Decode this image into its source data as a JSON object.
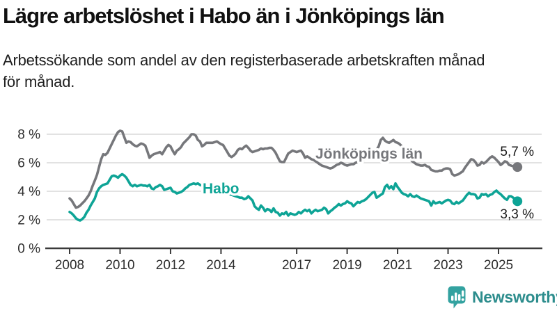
{
  "page": {
    "title": "Lägre arbetslöshet i Habo än i Jönköpings län",
    "subtitle_line1": "Arbetssökande som andel av den registerbaserade arbetskraften månad",
    "subtitle_line2": "för månad."
  },
  "branding": {
    "logo_text": "Newsworthy",
    "logo_text_color": "#2d8d8d",
    "logo_icon_color": "#33a2a0",
    "logo_icon": "bar-chart-bubble-icon"
  },
  "chart_data": {
    "type": "line",
    "unit": "percent",
    "frequency": "monthly",
    "period_start": "2008-01",
    "period_end": "2025-10",
    "grid": "horizontal",
    "ylim": [
      0,
      8.8
    ],
    "y_ticks": [
      0,
      2,
      4,
      6,
      8
    ],
    "y_tick_labels": [
      "0 %",
      "2 %",
      "4 %",
      "6 %",
      "8 %"
    ],
    "x_tick_years": [
      2008,
      2010,
      2012,
      2014,
      2017,
      2019,
      2021,
      2023,
      2025
    ],
    "x_tick_labels": [
      "2008",
      "2010",
      "2012",
      "2014",
      "2017",
      "2019",
      "2021",
      "2023",
      "2025"
    ],
    "colors": {
      "grid": "#d8d8d8",
      "axis": "#3a3a3a",
      "tick_text": "#2d2d2d",
      "value_text": "#1a1a1a"
    },
    "series": [
      {
        "name": "Jönköpings län",
        "color": "#76777b",
        "end_value_label": "5,7 %",
        "values": [
          3.5,
          3.35,
          3.1,
          2.85,
          2.9,
          3.0,
          3.15,
          3.3,
          3.5,
          3.7,
          4.0,
          4.4,
          4.75,
          5.15,
          5.7,
          6.25,
          6.6,
          6.55,
          6.7,
          7.0,
          7.3,
          7.6,
          7.9,
          8.15,
          8.25,
          8.2,
          7.8,
          7.4,
          7.5,
          7.45,
          7.3,
          7.2,
          7.15,
          7.25,
          7.35,
          7.3,
          7.2,
          6.8,
          6.35,
          6.5,
          6.6,
          6.65,
          6.7,
          6.75,
          6.6,
          6.85,
          7.1,
          7.25,
          7.15,
          6.85,
          6.6,
          6.85,
          6.95,
          7.1,
          7.35,
          7.5,
          7.65,
          7.8,
          8.0,
          8.0,
          7.9,
          7.6,
          7.5,
          7.15,
          7.25,
          7.4,
          7.4,
          7.4,
          7.4,
          7.45,
          7.5,
          7.4,
          7.3,
          7.25,
          7.0,
          6.75,
          6.5,
          6.4,
          6.5,
          6.65,
          6.9,
          7.0,
          6.95,
          7.1,
          7.2,
          7.05,
          6.85,
          6.75,
          6.8,
          6.85,
          6.9,
          7.0,
          6.95,
          7.0,
          7.0,
          7.05,
          7.05,
          6.9,
          6.7,
          6.4,
          6.1,
          6.05,
          6.05,
          6.35,
          6.65,
          6.75,
          6.85,
          6.8,
          6.75,
          6.8,
          6.85,
          6.65,
          6.35,
          6.45,
          6.35,
          6.25,
          6.2,
          6.1,
          6.0,
          5.9,
          5.8,
          5.75,
          5.7,
          5.65,
          5.6,
          5.65,
          5.75,
          5.85,
          5.9,
          6.0,
          5.95,
          5.85,
          5.8,
          5.85,
          5.9,
          5.9,
          6.0,
          6.05,
          6.1,
          6.15,
          6.2,
          6.3,
          6.35,
          6.4,
          6.5,
          6.6,
          6.9,
          7.15,
          7.6,
          7.75,
          7.55,
          7.45,
          7.4,
          7.5,
          7.6,
          7.45,
          7.4,
          7.3,
          7.15,
          6.95,
          6.75,
          6.5,
          6.3,
          6.1,
          6.0,
          5.9,
          5.85,
          5.8,
          5.8,
          5.85,
          5.75,
          5.7,
          5.5,
          5.45,
          5.4,
          5.4,
          5.45,
          5.45,
          5.55,
          5.6,
          5.6,
          5.55,
          5.2,
          5.1,
          5.15,
          5.2,
          5.3,
          5.4,
          5.65,
          5.85,
          6.05,
          6.25,
          6.2,
          6.05,
          5.8,
          5.85,
          6.05,
          5.95,
          6.05,
          6.2,
          6.35,
          6.45,
          6.35,
          6.2,
          6.05,
          5.85,
          5.95,
          6.1,
          6.05,
          5.85,
          5.8,
          5.75,
          5.7,
          5.7
        ]
      },
      {
        "name": "Habo",
        "color": "#0ea496",
        "end_value_label": "3,3 %",
        "values": [
          2.55,
          2.45,
          2.3,
          2.1,
          2.0,
          1.95,
          2.05,
          2.2,
          2.5,
          2.7,
          3.0,
          3.25,
          3.5,
          3.95,
          4.2,
          4.35,
          4.45,
          4.5,
          4.55,
          4.8,
          5.05,
          5.1,
          5.05,
          4.95,
          5.1,
          5.2,
          5.1,
          4.95,
          4.7,
          4.45,
          4.35,
          4.45,
          4.35,
          4.4,
          4.45,
          4.4,
          4.4,
          4.35,
          4.45,
          4.2,
          4.15,
          4.3,
          4.35,
          4.45,
          4.35,
          4.1,
          4.15,
          4.2,
          4.25,
          4.0,
          3.95,
          3.85,
          3.9,
          3.95,
          4.05,
          4.2,
          4.3,
          4.45,
          4.5,
          4.55,
          4.5,
          4.55,
          4.45,
          4.4,
          4.35,
          4.3,
          4.3,
          4.25,
          4.2,
          4.15,
          4.1,
          4.05,
          4.0,
          3.95,
          3.9,
          3.85,
          3.8,
          3.75,
          3.7,
          3.65,
          3.6,
          3.55,
          3.55,
          3.45,
          3.5,
          3.65,
          3.5,
          3.35,
          2.95,
          2.8,
          2.7,
          3.0,
          2.85,
          2.6,
          2.75,
          2.7,
          2.55,
          2.8,
          2.55,
          2.5,
          2.3,
          2.45,
          2.4,
          2.55,
          2.3,
          2.45,
          2.4,
          2.35,
          2.4,
          2.55,
          2.45,
          2.6,
          2.7,
          2.6,
          2.7,
          2.45,
          2.6,
          2.7,
          2.6,
          2.65,
          2.7,
          2.85,
          2.75,
          2.45,
          2.6,
          2.7,
          2.85,
          2.95,
          3.1,
          3.0,
          3.1,
          3.15,
          3.3,
          3.2,
          3.15,
          2.95,
          3.1,
          3.25,
          3.2,
          3.3,
          3.35,
          3.45,
          3.6,
          3.75,
          3.9,
          3.95,
          3.55,
          3.65,
          3.75,
          3.85,
          4.3,
          4.45,
          4.2,
          4.35,
          4.15,
          4.55,
          4.3,
          4.1,
          3.9,
          3.8,
          3.75,
          3.65,
          3.8,
          3.65,
          3.6,
          3.7,
          3.6,
          3.5,
          3.45,
          3.4,
          3.35,
          3.3,
          3.0,
          3.3,
          3.15,
          3.2,
          3.25,
          3.15,
          3.25,
          3.35,
          3.4,
          3.35,
          3.15,
          3.1,
          3.25,
          3.15,
          3.25,
          3.35,
          3.55,
          3.75,
          3.9,
          3.8,
          3.8,
          3.75,
          3.5,
          3.55,
          3.8,
          3.75,
          3.8,
          3.65,
          3.75,
          3.8,
          3.95,
          4.05,
          3.9,
          3.8,
          3.65,
          3.5,
          3.4,
          3.65,
          3.65,
          3.55,
          3.45,
          3.3
        ]
      }
    ]
  }
}
